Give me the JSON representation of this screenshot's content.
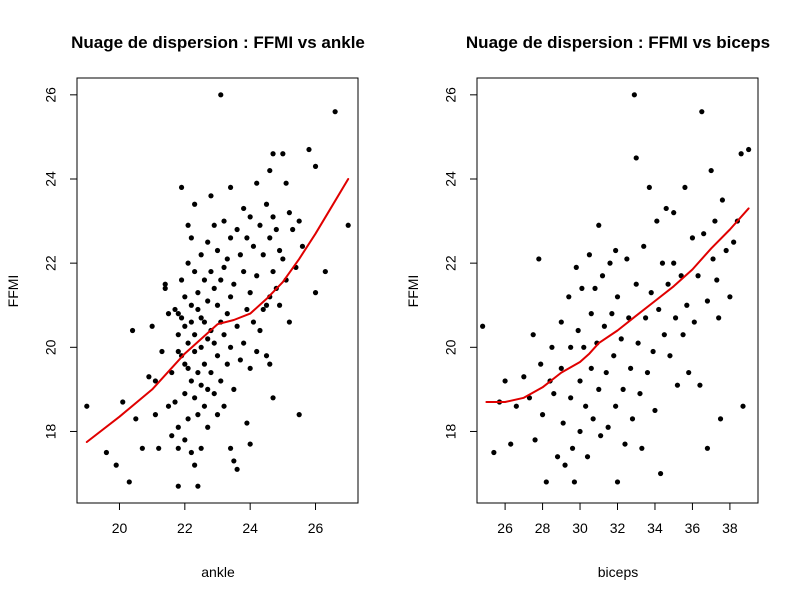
{
  "chart_data": [
    {
      "type": "scatter",
      "title": "Nuage de dispersion : FFMI vs ankle",
      "xlabel": "ankle",
      "ylabel": "FFMI",
      "xlim": [
        18.7,
        27.3
      ],
      "ylim": [
        16.3,
        26.4
      ],
      "xticks": [
        20,
        22,
        24,
        26
      ],
      "yticks": [
        18,
        20,
        22,
        24,
        26
      ],
      "point_color": "#000000",
      "smooth_color": "#e00000",
      "points": [
        [
          19.0,
          18.6
        ],
        [
          19.6,
          17.5
        ],
        [
          19.9,
          17.2
        ],
        [
          20.1,
          18.7
        ],
        [
          20.3,
          16.8
        ],
        [
          20.4,
          20.4
        ],
        [
          20.5,
          18.3
        ],
        [
          20.7,
          17.6
        ],
        [
          20.9,
          19.3
        ],
        [
          21.0,
          20.5
        ],
        [
          21.1,
          19.2
        ],
        [
          21.1,
          18.4
        ],
        [
          21.2,
          17.6
        ],
        [
          21.3,
          19.9
        ],
        [
          21.4,
          21.5
        ],
        [
          21.4,
          21.4
        ],
        [
          21.5,
          20.8
        ],
        [
          21.5,
          18.6
        ],
        [
          21.6,
          19.4
        ],
        [
          21.6,
          17.9
        ],
        [
          21.7,
          20.9
        ],
        [
          21.7,
          18.7
        ],
        [
          21.8,
          20.8
        ],
        [
          21.8,
          20.3
        ],
        [
          21.8,
          19.9
        ],
        [
          21.8,
          18.1
        ],
        [
          21.8,
          17.6
        ],
        [
          21.8,
          16.7
        ],
        [
          21.9,
          23.8
        ],
        [
          21.9,
          21.6
        ],
        [
          21.9,
          20.7
        ],
        [
          21.9,
          19.8
        ],
        [
          22.0,
          21.2
        ],
        [
          22.0,
          20.5
        ],
        [
          22.0,
          19.6
        ],
        [
          22.0,
          18.9
        ],
        [
          22.0,
          17.8
        ],
        [
          22.1,
          22.9
        ],
        [
          22.1,
          22.0
        ],
        [
          22.1,
          20.1
        ],
        [
          22.1,
          19.5
        ],
        [
          22.1,
          18.3
        ],
        [
          22.2,
          22.6
        ],
        [
          22.2,
          21.0
        ],
        [
          22.2,
          20.6
        ],
        [
          22.2,
          19.2
        ],
        [
          22.2,
          17.5
        ],
        [
          22.3,
          23.4
        ],
        [
          22.3,
          21.8
        ],
        [
          22.3,
          20.3
        ],
        [
          22.3,
          19.9
        ],
        [
          22.3,
          18.8
        ],
        [
          22.3,
          17.2
        ],
        [
          22.4,
          21.3
        ],
        [
          22.4,
          20.9
        ],
        [
          22.4,
          19.4
        ],
        [
          22.4,
          18.4
        ],
        [
          22.4,
          16.7
        ],
        [
          22.5,
          22.2
        ],
        [
          22.5,
          20.7
        ],
        [
          22.5,
          20.0
        ],
        [
          22.5,
          19.1
        ],
        [
          22.5,
          17.6
        ],
        [
          22.6,
          21.6
        ],
        [
          22.6,
          20.6
        ],
        [
          22.6,
          19.6
        ],
        [
          22.6,
          18.6
        ],
        [
          22.7,
          22.5
        ],
        [
          22.7,
          21.1
        ],
        [
          22.7,
          20.2
        ],
        [
          22.7,
          19.0
        ],
        [
          22.7,
          18.1
        ],
        [
          22.8,
          23.6
        ],
        [
          22.8,
          21.8
        ],
        [
          22.8,
          20.4
        ],
        [
          22.8,
          19.4
        ],
        [
          22.9,
          22.9
        ],
        [
          22.9,
          21.4
        ],
        [
          22.9,
          20.1
        ],
        [
          22.9,
          18.9
        ],
        [
          23.0,
          22.3
        ],
        [
          23.0,
          21.0
        ],
        [
          23.0,
          19.8
        ],
        [
          23.0,
          18.4
        ],
        [
          23.1,
          26.0
        ],
        [
          23.1,
          21.6
        ],
        [
          23.1,
          20.6
        ],
        [
          23.1,
          19.2
        ],
        [
          23.2,
          23.0
        ],
        [
          23.2,
          21.9
        ],
        [
          23.2,
          20.3
        ],
        [
          23.2,
          18.6
        ],
        [
          23.3,
          22.1
        ],
        [
          23.3,
          20.8
        ],
        [
          23.3,
          19.6
        ],
        [
          23.4,
          23.8
        ],
        [
          23.4,
          22.6
        ],
        [
          23.4,
          21.2
        ],
        [
          23.4,
          20.0
        ],
        [
          23.4,
          17.6
        ],
        [
          23.5,
          21.5
        ],
        [
          23.5,
          19.0
        ],
        [
          23.5,
          17.3
        ],
        [
          23.6,
          22.8
        ],
        [
          23.6,
          20.5
        ],
        [
          23.6,
          17.1
        ],
        [
          23.7,
          22.2
        ],
        [
          23.7,
          19.7
        ],
        [
          23.8,
          23.3
        ],
        [
          23.8,
          21.8
        ],
        [
          23.8,
          20.1
        ],
        [
          23.9,
          22.6
        ],
        [
          23.9,
          20.9
        ],
        [
          23.9,
          18.2
        ],
        [
          24.0,
          23.1
        ],
        [
          24.0,
          21.3
        ],
        [
          24.0,
          19.5
        ],
        [
          24.0,
          17.7
        ],
        [
          24.1,
          22.4
        ],
        [
          24.1,
          20.6
        ],
        [
          24.2,
          23.9
        ],
        [
          24.2,
          21.7
        ],
        [
          24.2,
          19.9
        ],
        [
          24.3,
          22.9
        ],
        [
          24.3,
          20.4
        ],
        [
          24.4,
          22.2
        ],
        [
          24.4,
          20.9
        ],
        [
          24.5,
          23.4
        ],
        [
          24.5,
          21.0
        ],
        [
          24.5,
          19.8
        ],
        [
          24.6,
          24.2
        ],
        [
          24.6,
          22.6
        ],
        [
          24.6,
          21.2
        ],
        [
          24.6,
          19.6
        ],
        [
          24.7,
          24.6
        ],
        [
          24.7,
          23.1
        ],
        [
          24.7,
          21.8
        ],
        [
          24.7,
          18.8
        ],
        [
          24.8,
          22.8
        ],
        [
          24.8,
          21.4
        ],
        [
          24.9,
          22.3
        ],
        [
          24.9,
          21.0
        ],
        [
          25.0,
          24.6
        ],
        [
          25.0,
          22.1
        ],
        [
          25.1,
          23.9
        ],
        [
          25.1,
          21.6
        ],
        [
          25.2,
          23.2
        ],
        [
          25.2,
          20.6
        ],
        [
          25.3,
          22.8
        ],
        [
          25.4,
          21.9
        ],
        [
          25.5,
          23.0
        ],
        [
          25.5,
          18.4
        ],
        [
          25.6,
          22.4
        ],
        [
          25.8,
          24.7
        ],
        [
          26.0,
          24.3
        ],
        [
          26.0,
          21.3
        ],
        [
          26.3,
          21.8
        ],
        [
          26.6,
          25.6
        ],
        [
          27.0,
          22.9
        ]
      ],
      "smooth": [
        [
          19.0,
          17.75
        ],
        [
          20.0,
          18.35
        ],
        [
          21.0,
          19.0
        ],
        [
          22.0,
          19.85
        ],
        [
          22.5,
          20.2
        ],
        [
          23.0,
          20.55
        ],
        [
          23.5,
          20.65
        ],
        [
          24.0,
          20.8
        ],
        [
          24.5,
          21.15
        ],
        [
          25.0,
          21.55
        ],
        [
          25.5,
          22.1
        ],
        [
          26.0,
          22.7
        ],
        [
          26.5,
          23.35
        ],
        [
          27.0,
          24.0
        ]
      ]
    },
    {
      "type": "scatter",
      "title": "Nuage de dispersion : FFMI vs biceps",
      "xlabel": "biceps",
      "ylabel": "FFMI",
      "xlim": [
        24.5,
        39.5
      ],
      "ylim": [
        16.3,
        26.4
      ],
      "xticks": [
        26,
        28,
        30,
        32,
        34,
        36,
        38
      ],
      "yticks": [
        18,
        20,
        22,
        24,
        26
      ],
      "point_color": "#000000",
      "smooth_color": "#e00000",
      "points": [
        [
          24.8,
          20.5
        ],
        [
          25.4,
          17.5
        ],
        [
          25.7,
          18.7
        ],
        [
          26.0,
          19.2
        ],
        [
          26.3,
          17.7
        ],
        [
          26.6,
          18.6
        ],
        [
          27.0,
          19.3
        ],
        [
          27.3,
          18.8
        ],
        [
          27.5,
          20.3
        ],
        [
          27.6,
          17.8
        ],
        [
          27.8,
          22.1
        ],
        [
          27.9,
          19.6
        ],
        [
          28.0,
          18.4
        ],
        [
          28.2,
          16.8
        ],
        [
          28.4,
          19.2
        ],
        [
          28.5,
          20.0
        ],
        [
          28.6,
          18.9
        ],
        [
          28.8,
          17.4
        ],
        [
          29.0,
          20.6
        ],
        [
          29.0,
          19.5
        ],
        [
          29.1,
          18.2
        ],
        [
          29.2,
          17.2
        ],
        [
          29.4,
          21.2
        ],
        [
          29.5,
          20.0
        ],
        [
          29.5,
          18.8
        ],
        [
          29.6,
          17.6
        ],
        [
          29.7,
          16.8
        ],
        [
          29.8,
          21.9
        ],
        [
          29.9,
          20.4
        ],
        [
          30.0,
          19.2
        ],
        [
          30.0,
          18.0
        ],
        [
          30.1,
          21.4
        ],
        [
          30.2,
          20.0
        ],
        [
          30.3,
          18.6
        ],
        [
          30.4,
          17.4
        ],
        [
          30.5,
          22.2
        ],
        [
          30.6,
          20.8
        ],
        [
          30.6,
          19.5
        ],
        [
          30.7,
          18.3
        ],
        [
          30.8,
          21.4
        ],
        [
          30.9,
          20.1
        ],
        [
          31.0,
          22.9
        ],
        [
          31.0,
          19.0
        ],
        [
          31.1,
          17.9
        ],
        [
          31.2,
          21.7
        ],
        [
          31.3,
          20.5
        ],
        [
          31.4,
          19.4
        ],
        [
          31.5,
          18.1
        ],
        [
          31.6,
          22.0
        ],
        [
          31.7,
          20.8
        ],
        [
          31.8,
          19.8
        ],
        [
          31.9,
          22.3
        ],
        [
          31.9,
          18.6
        ],
        [
          32.0,
          21.2
        ],
        [
          32.0,
          16.8
        ],
        [
          32.2,
          20.2
        ],
        [
          32.3,
          19.0
        ],
        [
          32.4,
          17.7
        ],
        [
          32.5,
          22.1
        ],
        [
          32.6,
          20.7
        ],
        [
          32.7,
          19.5
        ],
        [
          32.8,
          18.3
        ],
        [
          32.9,
          26.0
        ],
        [
          33.0,
          21.5
        ],
        [
          33.0,
          24.5
        ],
        [
          33.1,
          20.1
        ],
        [
          33.2,
          18.9
        ],
        [
          33.3,
          17.6
        ],
        [
          33.4,
          22.4
        ],
        [
          33.5,
          20.7
        ],
        [
          33.6,
          19.4
        ],
        [
          33.7,
          23.8
        ],
        [
          33.8,
          21.3
        ],
        [
          33.9,
          19.9
        ],
        [
          34.0,
          18.5
        ],
        [
          34.1,
          23.0
        ],
        [
          34.2,
          20.9
        ],
        [
          34.3,
          17.0
        ],
        [
          34.4,
          22.0
        ],
        [
          34.5,
          20.3
        ],
        [
          34.6,
          23.3
        ],
        [
          34.7,
          21.5
        ],
        [
          34.8,
          19.8
        ],
        [
          35.0,
          23.2
        ],
        [
          35.0,
          22.0
        ],
        [
          35.1,
          20.7
        ],
        [
          35.2,
          19.1
        ],
        [
          35.4,
          21.7
        ],
        [
          35.5,
          20.3
        ],
        [
          35.6,
          23.8
        ],
        [
          35.7,
          21.0
        ],
        [
          35.8,
          19.4
        ],
        [
          36.0,
          22.6
        ],
        [
          36.1,
          20.6
        ],
        [
          36.3,
          21.7
        ],
        [
          36.4,
          19.1
        ],
        [
          36.5,
          25.6
        ],
        [
          36.6,
          22.7
        ],
        [
          36.8,
          21.1
        ],
        [
          36.8,
          17.6
        ],
        [
          37.0,
          24.2
        ],
        [
          37.1,
          22.1
        ],
        [
          37.2,
          23.0
        ],
        [
          37.3,
          21.6
        ],
        [
          37.4,
          20.7
        ],
        [
          37.5,
          18.3
        ],
        [
          37.6,
          23.5
        ],
        [
          37.8,
          22.3
        ],
        [
          38.0,
          21.2
        ],
        [
          38.2,
          22.5
        ],
        [
          38.4,
          23.0
        ],
        [
          38.6,
          24.6
        ],
        [
          38.7,
          18.6
        ],
        [
          39.0,
          24.7
        ]
      ],
      "smooth": [
        [
          25.0,
          18.7
        ],
        [
          26.0,
          18.7
        ],
        [
          27.0,
          18.8
        ],
        [
          28.0,
          19.05
        ],
        [
          29.0,
          19.4
        ],
        [
          30.0,
          19.65
        ],
        [
          30.5,
          19.85
        ],
        [
          31.0,
          20.1
        ],
        [
          32.0,
          20.4
        ],
        [
          33.0,
          20.75
        ],
        [
          34.0,
          21.1
        ],
        [
          35.0,
          21.45
        ],
        [
          36.0,
          21.85
        ],
        [
          37.0,
          22.35
        ],
        [
          38.0,
          22.8
        ],
        [
          39.0,
          23.3
        ]
      ]
    }
  ]
}
